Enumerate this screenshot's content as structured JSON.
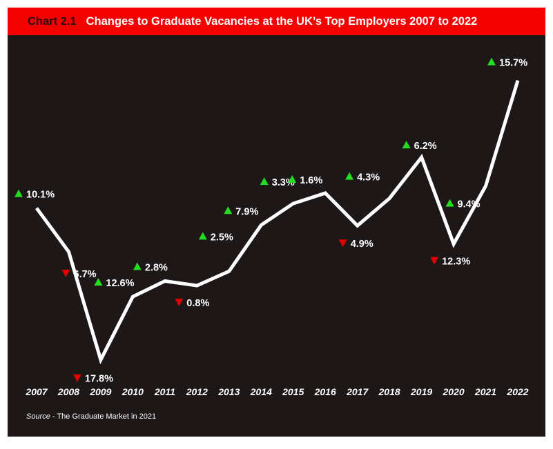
{
  "header": {
    "chart_number": "Chart 2.1",
    "title": "Changes to Graduate Vacancies at the UK’s Top Employers 2007 to 2022"
  },
  "source": {
    "label": "Source",
    "separator": " - ",
    "text": "The Graduate Market in 2021"
  },
  "colors": {
    "header_bg": "#f40000",
    "panel_bg": "#1e1717",
    "line": "#ffffff",
    "up": "#22dd22",
    "down": "#e00000"
  },
  "chart_data": {
    "type": "line",
    "title": "Changes to Graduate Vacancies at the UK’s Top Employers 2007 to 2022",
    "xlabel": "",
    "ylabel": "",
    "categories": [
      "2007",
      "2008",
      "2009",
      "2010",
      "2011",
      "2012",
      "2013",
      "2014",
      "2015",
      "2016",
      "2017",
      "2018",
      "2019",
      "2020",
      "2021",
      "2022"
    ],
    "series": [
      {
        "values": [
          100,
          93.3,
          76.7,
          86.4,
          88.8,
          88.1,
          90.3,
          97.4,
          100.7,
          102.3,
          97.3,
          101.5,
          107.8,
          94.5,
          103.4,
          119.6
        ],
        "changes": [
          {
            "value": "10.1%",
            "direction": "up"
          },
          {
            "value": "6.7%",
            "direction": "down"
          },
          {
            "value": "17.8%",
            "direction": "down"
          },
          {
            "value": "12.6%",
            "direction": "up"
          },
          {
            "value": "2.8%",
            "direction": "up"
          },
          {
            "value": "0.8%",
            "direction": "down"
          },
          {
            "value": "2.5%",
            "direction": "up"
          },
          {
            "value": "7.9%",
            "direction": "up"
          },
          {
            "value": "3.3%",
            "direction": "up"
          },
          {
            "value": "1.6%",
            "direction": "up"
          },
          {
            "value": "4.9%",
            "direction": "down"
          },
          {
            "value": "4.3%",
            "direction": "up"
          },
          {
            "value": "6.2%",
            "direction": "up"
          },
          {
            "value": "12.3%",
            "direction": "down"
          },
          {
            "value": "9.4%",
            "direction": "up"
          },
          {
            "value": "15.7%",
            "direction": "up"
          }
        ]
      }
    ],
    "ylim": [
      70,
      122
    ],
    "grid": false,
    "legend": "none"
  }
}
